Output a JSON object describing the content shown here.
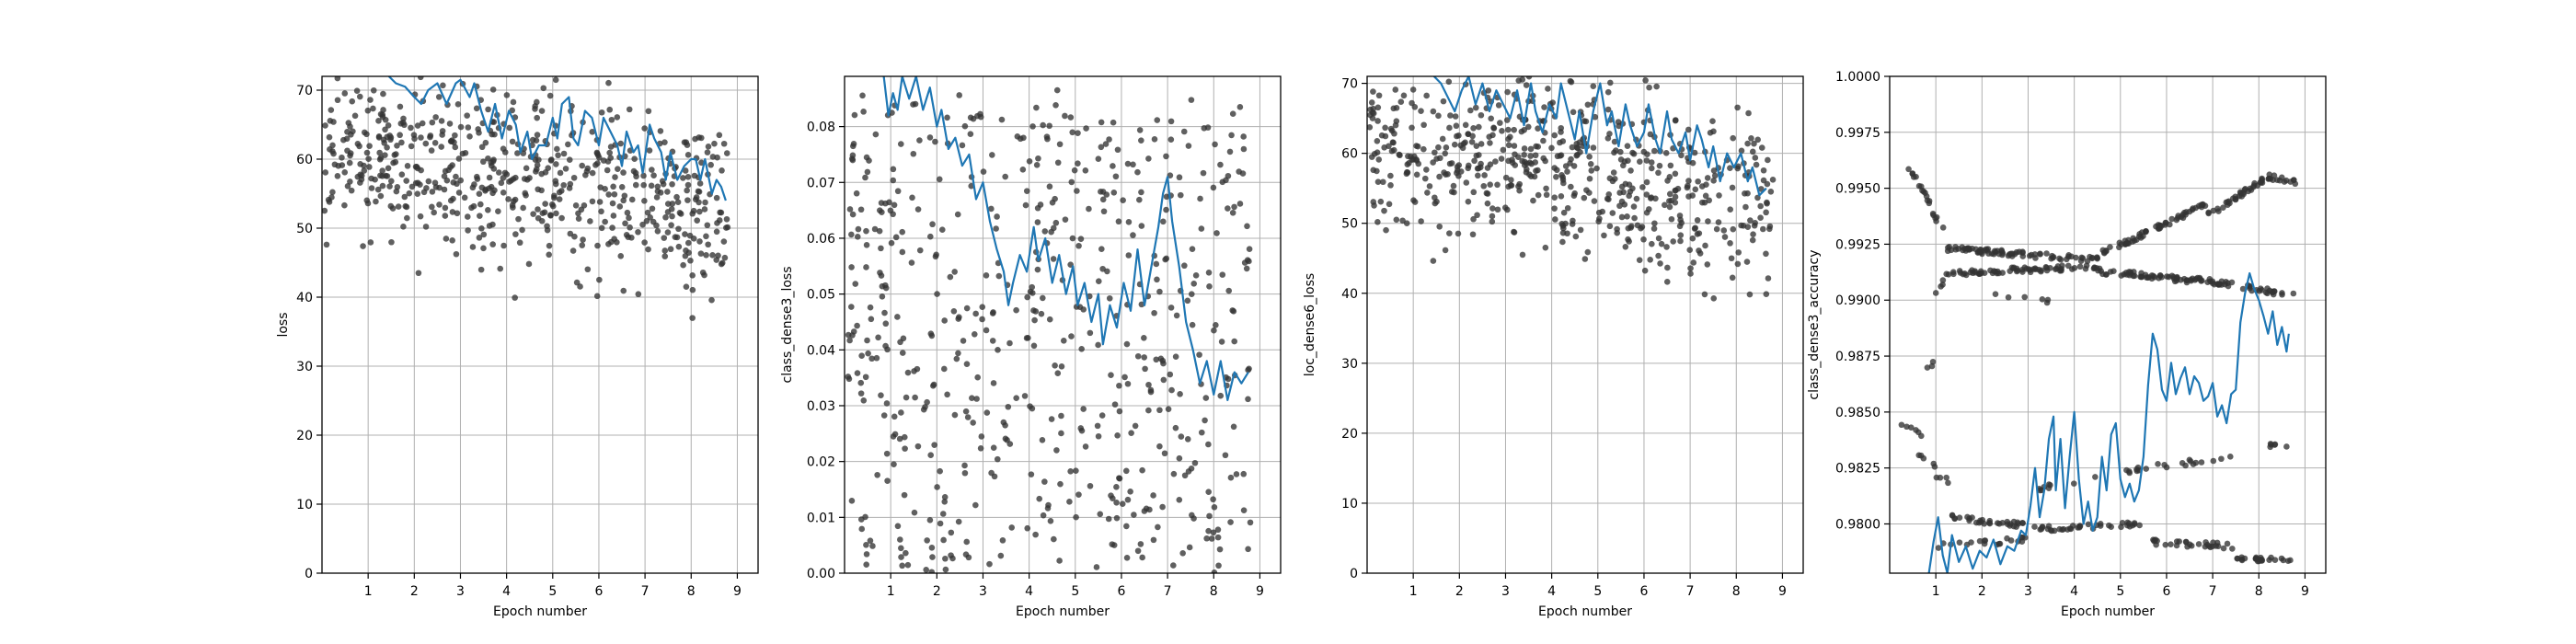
{
  "chart_data": [
    {
      "type": "scatter",
      "title": "",
      "xlabel": "Epoch number",
      "ylabel": "loss",
      "xlim": [
        0,
        9.45
      ],
      "ylim": [
        0,
        72
      ],
      "xticks": [
        1,
        2,
        3,
        4,
        5,
        6,
        7,
        8,
        9
      ],
      "yticks": [
        0,
        10,
        20,
        30,
        40,
        50,
        60,
        70
      ],
      "grid": true,
      "colors": {
        "points": "#333333",
        "line": "#1f77b4"
      },
      "points_gen": {
        "n": 620,
        "seed": 11,
        "trend": [
          [
            0,
            63
          ],
          [
            9,
            52
          ]
        ],
        "spread": 11
      },
      "line": [
        [
          1.45,
          72
        ],
        [
          1.6,
          71
        ],
        [
          1.8,
          70.5
        ],
        [
          2.0,
          69
        ],
        [
          2.15,
          68
        ],
        [
          2.3,
          70
        ],
        [
          2.5,
          71
        ],
        [
          2.7,
          68
        ],
        [
          2.9,
          71
        ],
        [
          3.0,
          71.5
        ],
        [
          3.2,
          69
        ],
        [
          3.3,
          71
        ],
        [
          3.45,
          67
        ],
        [
          3.6,
          64
        ],
        [
          3.75,
          68
        ],
        [
          3.9,
          63
        ],
        [
          4.05,
          67
        ],
        [
          4.2,
          65
        ],
        [
          4.3,
          61
        ],
        [
          4.45,
          64
        ],
        [
          4.55,
          60
        ],
        [
          4.7,
          62
        ],
        [
          4.85,
          62
        ],
        [
          5.0,
          66
        ],
        [
          5.1,
          63
        ],
        [
          5.2,
          68
        ],
        [
          5.35,
          69
        ],
        [
          5.45,
          63
        ],
        [
          5.55,
          62
        ],
        [
          5.7,
          67
        ],
        [
          5.85,
          66
        ],
        [
          6.0,
          62
        ],
        [
          6.1,
          66
        ],
        [
          6.25,
          64
        ],
        [
          6.4,
          62
        ],
        [
          6.5,
          59
        ],
        [
          6.6,
          64
        ],
        [
          6.75,
          61
        ],
        [
          6.85,
          62
        ],
        [
          6.95,
          58
        ],
        [
          7.1,
          65
        ],
        [
          7.2,
          63
        ],
        [
          7.35,
          61
        ],
        [
          7.45,
          57
        ],
        [
          7.55,
          61
        ],
        [
          7.7,
          57
        ],
        [
          7.85,
          59
        ],
        [
          8.0,
          60
        ],
        [
          8.1,
          60
        ],
        [
          8.2,
          57
        ],
        [
          8.3,
          60
        ],
        [
          8.45,
          55
        ],
        [
          8.55,
          57
        ],
        [
          8.65,
          56
        ],
        [
          8.75,
          54
        ]
      ]
    },
    {
      "type": "scatter",
      "title": "",
      "xlabel": "Epoch number",
      "ylabel": "class_dense3_loss",
      "xlim": [
        0,
        9.45
      ],
      "ylim": [
        0,
        0.089
      ],
      "xticks": [
        1,
        2,
        3,
        4,
        5,
        6,
        7,
        8,
        9
      ],
      "yticks": [
        0.0,
        0.01,
        0.02,
        0.03,
        0.04,
        0.05,
        0.06,
        0.07,
        0.08
      ],
      "ytick_labels": [
        "0.00",
        "0.01",
        "0.02",
        "0.03",
        "0.04",
        "0.05",
        "0.06",
        "0.07",
        "0.08"
      ],
      "grid": true,
      "colors": {
        "points": "#333333",
        "line": "#1f77b4"
      },
      "points_gen": {
        "n": 600,
        "seed": 23,
        "trend": [
          [
            0,
            0.036
          ],
          [
            9,
            0.024
          ]
        ],
        "spread": 0.03
      },
      "line": [
        [
          0.85,
          0.089
        ],
        [
          0.95,
          0.082
        ],
        [
          1.05,
          0.086
        ],
        [
          1.15,
          0.083
        ],
        [
          1.25,
          0.089
        ],
        [
          1.4,
          0.085
        ],
        [
          1.55,
          0.089
        ],
        [
          1.7,
          0.083
        ],
        [
          1.85,
          0.087
        ],
        [
          2.0,
          0.08
        ],
        [
          2.1,
          0.083
        ],
        [
          2.25,
          0.076
        ],
        [
          2.4,
          0.078
        ],
        [
          2.55,
          0.073
        ],
        [
          2.7,
          0.075
        ],
        [
          2.85,
          0.067
        ],
        [
          3.0,
          0.07
        ],
        [
          3.15,
          0.063
        ],
        [
          3.3,
          0.058
        ],
        [
          3.45,
          0.054
        ],
        [
          3.55,
          0.048
        ],
        [
          3.65,
          0.052
        ],
        [
          3.8,
          0.057
        ],
        [
          3.95,
          0.054
        ],
        [
          4.1,
          0.062
        ],
        [
          4.2,
          0.056
        ],
        [
          4.35,
          0.06
        ],
        [
          4.5,
          0.052
        ],
        [
          4.65,
          0.057
        ],
        [
          4.8,
          0.05
        ],
        [
          4.95,
          0.055
        ],
        [
          5.05,
          0.048
        ],
        [
          5.2,
          0.052
        ],
        [
          5.35,
          0.045
        ],
        [
          5.5,
          0.05
        ],
        [
          5.6,
          0.041
        ],
        [
          5.75,
          0.048
        ],
        [
          5.9,
          0.044
        ],
        [
          6.05,
          0.052
        ],
        [
          6.2,
          0.047
        ],
        [
          6.35,
          0.058
        ],
        [
          6.5,
          0.048
        ],
        [
          6.65,
          0.055
        ],
        [
          6.8,
          0.062
        ],
        [
          6.9,
          0.068
        ],
        [
          7.0,
          0.071
        ],
        [
          7.1,
          0.063
        ],
        [
          7.25,
          0.055
        ],
        [
          7.4,
          0.045
        ],
        [
          7.55,
          0.04
        ],
        [
          7.7,
          0.034
        ],
        [
          7.85,
          0.038
        ],
        [
          8.0,
          0.032
        ],
        [
          8.15,
          0.038
        ],
        [
          8.3,
          0.031
        ],
        [
          8.45,
          0.036
        ],
        [
          8.6,
          0.034
        ],
        [
          8.75,
          0.036
        ]
      ]
    },
    {
      "type": "scatter",
      "title": "",
      "xlabel": "Epoch number",
      "ylabel": "loc_dense6_loss",
      "xlim": [
        0,
        9.45
      ],
      "ylim": [
        0,
        71
      ],
      "xticks": [
        1,
        2,
        3,
        4,
        5,
        6,
        7,
        8,
        9
      ],
      "yticks": [
        0,
        10,
        20,
        30,
        40,
        50,
        60,
        70
      ],
      "grid": true,
      "colors": {
        "points": "#333333",
        "line": "#1f77b4"
      },
      "points_gen": {
        "n": 620,
        "seed": 37,
        "trend": [
          [
            0,
            63
          ],
          [
            9,
            52
          ]
        ],
        "spread": 11
      },
      "line": [
        [
          1.45,
          71
        ],
        [
          1.6,
          70
        ],
        [
          1.75,
          68
        ],
        [
          1.9,
          66
        ],
        [
          2.05,
          69
        ],
        [
          2.2,
          71
        ],
        [
          2.35,
          67
        ],
        [
          2.5,
          70
        ],
        [
          2.65,
          66
        ],
        [
          2.8,
          69
        ],
        [
          2.95,
          67
        ],
        [
          3.1,
          65
        ],
        [
          3.25,
          69
        ],
        [
          3.4,
          64
        ],
        [
          3.55,
          70
        ],
        [
          3.65,
          66
        ],
        [
          3.8,
          63
        ],
        [
          3.95,
          67
        ],
        [
          4.1,
          65
        ],
        [
          4.2,
          70
        ],
        [
          4.35,
          66
        ],
        [
          4.5,
          62
        ],
        [
          4.6,
          66
        ],
        [
          4.75,
          60
        ],
        [
          4.9,
          66
        ],
        [
          5.05,
          70
        ],
        [
          5.2,
          64
        ],
        [
          5.3,
          66
        ],
        [
          5.45,
          61
        ],
        [
          5.6,
          67
        ],
        [
          5.7,
          64
        ],
        [
          5.85,
          61
        ],
        [
          6.0,
          63
        ],
        [
          6.1,
          67
        ],
        [
          6.25,
          62
        ],
        [
          6.35,
          60
        ],
        [
          6.5,
          66
        ],
        [
          6.6,
          62
        ],
        [
          6.75,
          60
        ],
        [
          6.9,
          63
        ],
        [
          7.0,
          59
        ],
        [
          7.15,
          64
        ],
        [
          7.25,
          62
        ],
        [
          7.4,
          58
        ],
        [
          7.5,
          61
        ],
        [
          7.65,
          56
        ],
        [
          7.8,
          60
        ],
        [
          7.95,
          58
        ],
        [
          8.1,
          60
        ],
        [
          8.25,
          56
        ],
        [
          8.35,
          58
        ],
        [
          8.5,
          54
        ],
        [
          8.65,
          55
        ]
      ]
    },
    {
      "type": "scatter",
      "title": "",
      "xlabel": "Epoch number",
      "ylabel": "class_dense3_accuracy",
      "xlim": [
        0,
        9.45
      ],
      "ylim": [
        0.9778,
        1.0
      ],
      "xticks": [
        1,
        2,
        3,
        4,
        5,
        6,
        7,
        8,
        9
      ],
      "yticks": [
        0.98,
        0.9825,
        0.985,
        0.9875,
        0.99,
        0.9925,
        0.995,
        0.9975,
        1.0
      ],
      "ytick_labels": [
        "0.9800",
        "0.9825",
        "0.9850",
        "0.9875",
        "0.9900",
        "0.9925",
        "0.9950",
        "0.9975",
        "1.0000"
      ],
      "grid": true,
      "colors": {
        "points": "#333333",
        "line": "#1f77b4"
      },
      "point_bands": [
        {
          "x0": 0.3,
          "x1": 0.9,
          "y0": 0.9963,
          "y1": 0.9943,
          "n": 14
        },
        {
          "x0": 0.9,
          "x1": 1.2,
          "y0": 0.994,
          "y1": 0.993,
          "n": 6
        },
        {
          "x0": 1.2,
          "x1": 4.5,
          "y0": 0.9923,
          "y1": 0.9918,
          "n": 80
        },
        {
          "x0": 4.5,
          "x1": 6.9,
          "y0": 0.992,
          "y1": 0.9943,
          "n": 60
        },
        {
          "x0": 6.9,
          "x1": 8.2,
          "y0": 0.9938,
          "y1": 0.9955,
          "n": 36
        },
        {
          "x0": 8.2,
          "x1": 8.8,
          "y0": 0.9955,
          "y1": 0.9953,
          "n": 16
        },
        {
          "x0": 1.2,
          "x1": 4.5,
          "y0": 0.9912,
          "y1": 0.9915,
          "n": 70
        },
        {
          "x0": 4.5,
          "x1": 6.5,
          "y0": 0.9913,
          "y1": 0.9909,
          "n": 50
        },
        {
          "x0": 6.5,
          "x1": 8.8,
          "y0": 0.991,
          "y1": 0.9902,
          "n": 50
        },
        {
          "x0": 1.0,
          "x1": 1.2,
          "y0": 0.9902,
          "y1": 0.991,
          "n": 4
        },
        {
          "x0": 2.0,
          "x1": 3.5,
          "y0": 0.9902,
          "y1": 0.99,
          "n": 6
        },
        {
          "x0": 0.2,
          "x1": 0.7,
          "y0": 0.9846,
          "y1": 0.984,
          "n": 6
        },
        {
          "x0": 0.5,
          "x1": 1.0,
          "y0": 0.9832,
          "y1": 0.9826,
          "n": 5
        },
        {
          "x0": 0.8,
          "x1": 0.95,
          "y0": 0.987,
          "y1": 0.9872,
          "n": 3
        },
        {
          "x0": 1.0,
          "x1": 1.4,
          "y0": 0.9822,
          "y1": 0.9818,
          "n": 4
        },
        {
          "x0": 1.3,
          "x1": 3.5,
          "y0": 0.9803,
          "y1": 0.9798,
          "n": 40
        },
        {
          "x0": 3.5,
          "x1": 5.5,
          "y0": 0.9798,
          "y1": 0.98,
          "n": 30
        },
        {
          "x0": 5.5,
          "x1": 7.5,
          "y0": 0.9792,
          "y1": 0.979,
          "n": 30
        },
        {
          "x0": 7.5,
          "x1": 8.8,
          "y0": 0.9785,
          "y1": 0.9783,
          "n": 24
        },
        {
          "x0": 1.0,
          "x1": 3.0,
          "y0": 0.979,
          "y1": 0.9793,
          "n": 20
        },
        {
          "x0": 3.0,
          "x1": 5.5,
          "y0": 0.9815,
          "y1": 0.9825,
          "n": 16
        },
        {
          "x0": 5.5,
          "x1": 7.5,
          "y0": 0.9825,
          "y1": 0.983,
          "n": 14
        },
        {
          "x0": 8.2,
          "x1": 8.8,
          "y0": 0.9835,
          "y1": 0.9834,
          "n": 6
        }
      ],
      "line": [
        [
          0.85,
          0.9778
        ],
        [
          0.95,
          0.9792
        ],
        [
          1.05,
          0.9803
        ],
        [
          1.15,
          0.9786
        ],
        [
          1.25,
          0.9778
        ],
        [
          1.35,
          0.9795
        ],
        [
          1.5,
          0.9783
        ],
        [
          1.65,
          0.979
        ],
        [
          1.8,
          0.978
        ],
        [
          1.95,
          0.9788
        ],
        [
          2.1,
          0.9785
        ],
        [
          2.25,
          0.9793
        ],
        [
          2.4,
          0.9782
        ],
        [
          2.55,
          0.979
        ],
        [
          2.7,
          0.9788
        ],
        [
          2.85,
          0.9797
        ],
        [
          2.95,
          0.9795
        ],
        [
          3.05,
          0.9808
        ],
        [
          3.15,
          0.9825
        ],
        [
          3.25,
          0.9803
        ],
        [
          3.35,
          0.9815
        ],
        [
          3.45,
          0.9838
        ],
        [
          3.55,
          0.9848
        ],
        [
          3.6,
          0.9815
        ],
        [
          3.7,
          0.9838
        ],
        [
          3.8,
          0.9807
        ],
        [
          3.9,
          0.983
        ],
        [
          4.0,
          0.985
        ],
        [
          4.1,
          0.982
        ],
        [
          4.2,
          0.98
        ],
        [
          4.3,
          0.981
        ],
        [
          4.4,
          0.9797
        ],
        [
          4.5,
          0.9803
        ],
        [
          4.6,
          0.983
        ],
        [
          4.7,
          0.9815
        ],
        [
          4.8,
          0.984
        ],
        [
          4.9,
          0.9845
        ],
        [
          5.0,
          0.982
        ],
        [
          5.1,
          0.9812
        ],
        [
          5.2,
          0.9818
        ],
        [
          5.3,
          0.981
        ],
        [
          5.4,
          0.9815
        ],
        [
          5.5,
          0.983
        ],
        [
          5.6,
          0.9862
        ],
        [
          5.7,
          0.9885
        ],
        [
          5.8,
          0.9878
        ],
        [
          5.9,
          0.986
        ],
        [
          6.0,
          0.9855
        ],
        [
          6.1,
          0.9872
        ],
        [
          6.2,
          0.9858
        ],
        [
          6.3,
          0.9865
        ],
        [
          6.4,
          0.987
        ],
        [
          6.5,
          0.9858
        ],
        [
          6.6,
          0.9866
        ],
        [
          6.7,
          0.9863
        ],
        [
          6.8,
          0.9855
        ],
        [
          6.9,
          0.9857
        ],
        [
          7.0,
          0.9863
        ],
        [
          7.1,
          0.9848
        ],
        [
          7.2,
          0.9853
        ],
        [
          7.3,
          0.9845
        ],
        [
          7.4,
          0.9858
        ],
        [
          7.5,
          0.986
        ],
        [
          7.6,
          0.989
        ],
        [
          7.7,
          0.9903
        ],
        [
          7.8,
          0.9912
        ],
        [
          7.9,
          0.9905
        ],
        [
          8.0,
          0.99
        ],
        [
          8.1,
          0.9893
        ],
        [
          8.2,
          0.9885
        ],
        [
          8.3,
          0.9895
        ],
        [
          8.4,
          0.988
        ],
        [
          8.5,
          0.9888
        ],
        [
          8.6,
          0.9877
        ],
        [
          8.65,
          0.9885
        ]
      ]
    }
  ]
}
